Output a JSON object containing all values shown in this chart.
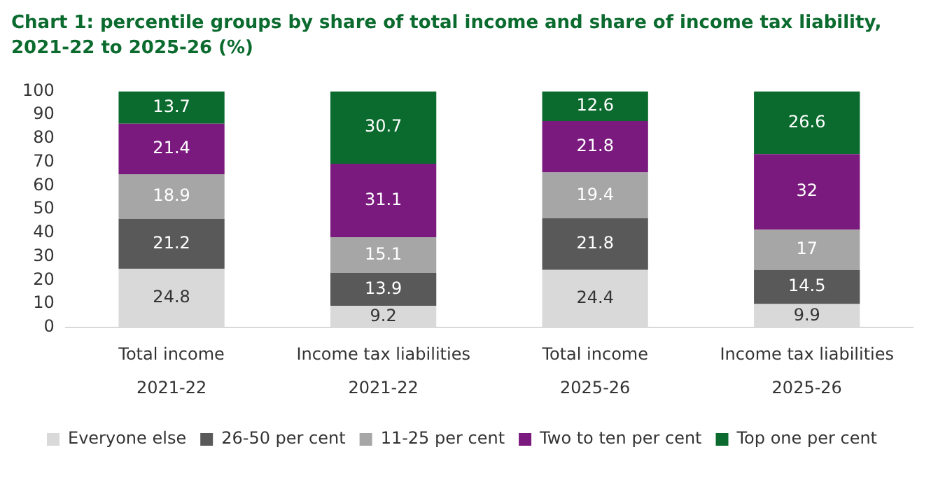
{
  "chart_data": {
    "type": "bar",
    "title": "Chart 1: percentile groups by share of total income and share of income tax liability, 2021-22 to 2025-26 (%)",
    "categories": [
      "Total income\n2021-22",
      "Income tax liabilities\n2021-22",
      "Total income\n2025-26",
      "Income tax liabilities\n2025-26"
    ],
    "stacked": true,
    "series": [
      {
        "name": "Everyone else",
        "color": "#d9d9d9",
        "values": [
          24.8,
          9.2,
          24.4,
          9.9
        ]
      },
      {
        "name": "26-50 per cent",
        "color": "#595959",
        "values": [
          21.2,
          13.9,
          21.8,
          14.5
        ]
      },
      {
        "name": "11-25 per cent",
        "color": "#a6a6a6",
        "values": [
          18.9,
          15.1,
          19.4,
          17
        ]
      },
      {
        "name": "Two to ten per cent",
        "color": "#7a1a7e",
        "values": [
          21.4,
          31.1,
          21.8,
          32
        ]
      },
      {
        "name": "Top one per cent",
        "color": "#0b6b2e",
        "values": [
          13.7,
          30.7,
          12.6,
          26.6
        ]
      }
    ],
    "ylim": [
      0,
      100
    ],
    "yticks": [
      0,
      10,
      20,
      30,
      40,
      50,
      60,
      70,
      80,
      90,
      100
    ],
    "grid": false,
    "legend": "bottom",
    "data_labels": true
  }
}
